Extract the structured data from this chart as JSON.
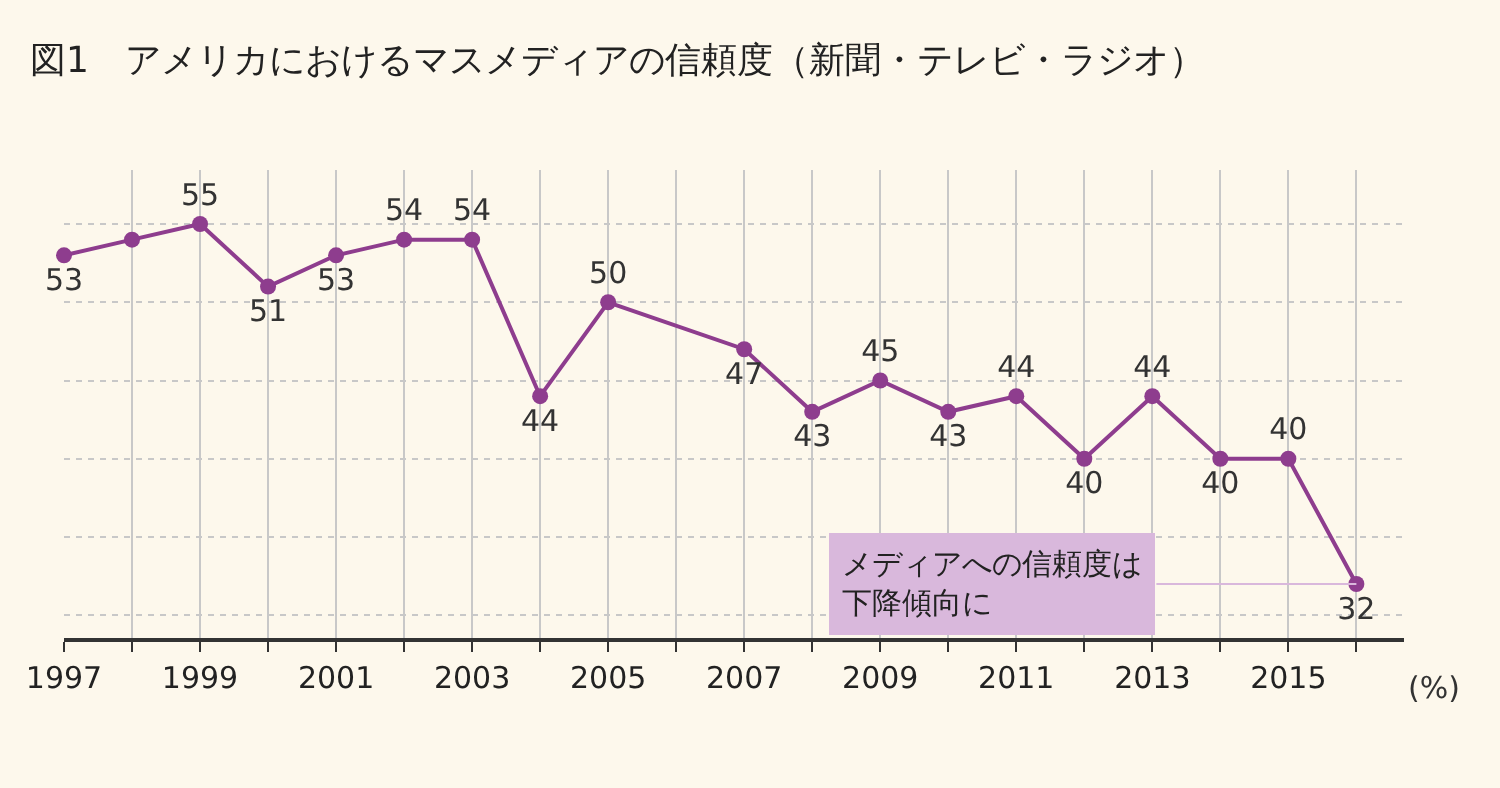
{
  "chart_data": {
    "type": "line",
    "title": "図1　アメリカにおけるマスメディアの信頼度（新聞・テレビ・ラジオ）",
    "x": [
      1997,
      1998,
      1999,
      2000,
      2001,
      2002,
      2003,
      2004,
      2005,
      2007,
      2008,
      2009,
      2010,
      2011,
      2012,
      2013,
      2014,
      2015,
      2016
    ],
    "series": [
      {
        "color": "#8e3d8e",
        "values": [
          53,
          54,
          55,
          51,
          53,
          54,
          54,
          44,
          50,
          47,
          43,
          45,
          43,
          44,
          40,
          44,
          40,
          40,
          32
        ],
        "value_labels": [
          "53",
          null,
          "55",
          "51",
          "53",
          "54",
          "54",
          "44",
          "50",
          "47",
          "43",
          "45",
          "43",
          "44",
          "40",
          "44",
          "40",
          "40",
          "32"
        ]
      }
    ],
    "xlim": [
      1997,
      2016.7
    ],
    "xticks": [
      1997,
      {
        "value": 1998,
        "label": null
      },
      1999,
      {
        "value": 2000,
        "label": null
      },
      2001,
      {
        "value": 2002,
        "label": null
      },
      2003,
      {
        "value": 2004,
        "label": null
      },
      2005,
      {
        "value": 2006,
        "label": null
      },
      2007,
      {
        "value": 2008,
        "label": null
      },
      2009,
      {
        "value": 2010,
        "label": null
      },
      2011,
      {
        "value": 2012,
        "label": null
      },
      2013,
      {
        "value": 2014,
        "label": null
      },
      2015,
      {
        "value": 2016,
        "label": null
      }
    ],
    "ylabel": "(%)",
    "annotations": [
      {
        "text": "メディアへの信頼度は下降傾向に",
        "x": 2016,
        "y": 32
      }
    ],
    "grid": true,
    "marker": "circle",
    "line_style": "solid",
    "legend": false,
    "tick_labels": "x"
  }
}
